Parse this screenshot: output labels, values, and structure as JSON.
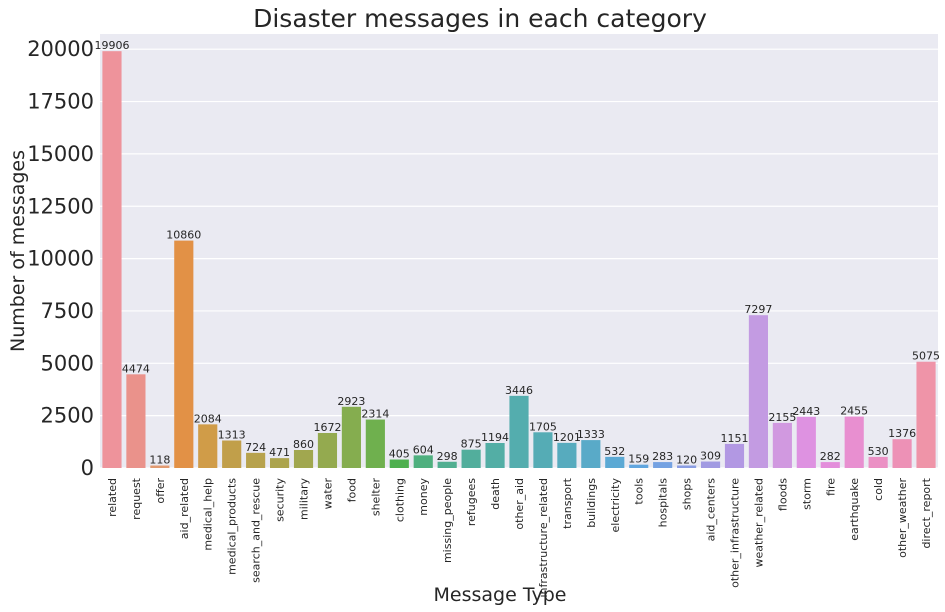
{
  "chart_data": {
    "type": "bar",
    "title": "Disaster messages in each category",
    "xlabel": "Message Type",
    "ylabel": "Number of messages",
    "ylim": [
      0,
      21000
    ],
    "yticks": [
      0,
      2500,
      5000,
      7500,
      10000,
      12500,
      15000,
      17500,
      20000
    ],
    "grid": true,
    "categories": [
      "related",
      "request",
      "offer",
      "aid_related",
      "medical_help",
      "medical_products",
      "search_and_rescue",
      "security",
      "military",
      "water",
      "food",
      "shelter",
      "clothing",
      "money",
      "missing_people",
      "refugees",
      "death",
      "other_aid",
      "infrastructure_related",
      "transport",
      "buildings",
      "electricity",
      "tools",
      "hospitals",
      "shops",
      "aid_centers",
      "other_infrastructure",
      "weather_related",
      "floods",
      "storm",
      "fire",
      "earthquake",
      "cold",
      "other_weather",
      "direct_report"
    ],
    "values": [
      19906,
      4474,
      118,
      10860,
      2084,
      1313,
      724,
      471,
      860,
      1672,
      2923,
      2314,
      405,
      604,
      298,
      875,
      1194,
      3446,
      1705,
      1201,
      1333,
      532,
      159,
      283,
      120,
      309,
      1151,
      7297,
      2155,
      2443,
      282,
      2455,
      530,
      1376,
      5075
    ],
    "colors": [
      "#ee939b",
      "#ea928b",
      "#e19a71",
      "#e29146",
      "#d09c48",
      "#c19f4a",
      "#b7a24c",
      "#aca44d",
      "#a1a74f",
      "#94aa4f",
      "#85ad4f",
      "#6fb04e",
      "#4eb04f",
      "#4fb07f",
      "#51af91",
      "#52ae9c",
      "#53aea5",
      "#54adae",
      "#55acb5",
      "#57abbe",
      "#59aac8",
      "#5ba9d4",
      "#61a6df",
      "#75a2e2",
      "#8b9ee3",
      "#a19ae2",
      "#b298e3",
      "#c39be2",
      "#d199e0",
      "#de92e1",
      "#e38edb",
      "#e88fd0",
      "#eb90c4",
      "#ed91b6",
      "#ef94a8"
    ]
  }
}
